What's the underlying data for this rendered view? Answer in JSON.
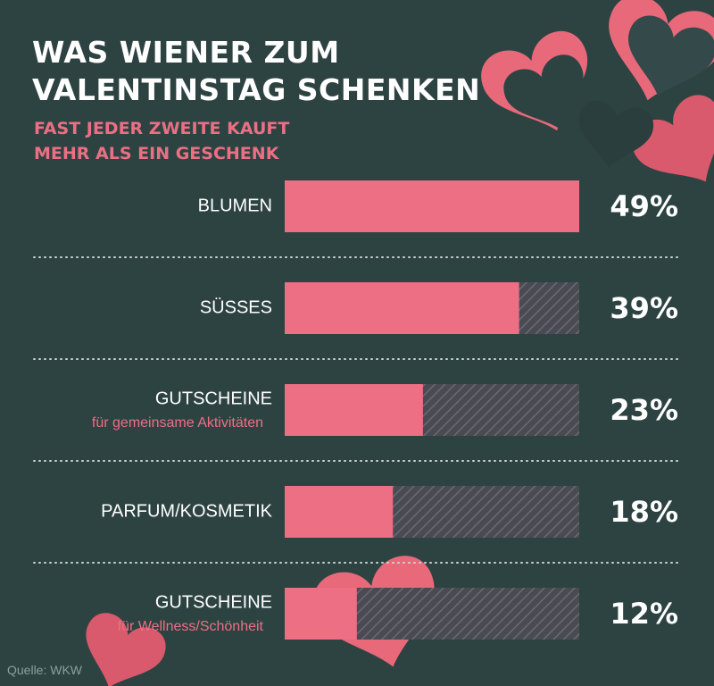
{
  "chart_data": {
    "type": "hbar",
    "title": "WAS WIENER ZUM VALENTINSTAG SCHENKEN",
    "subtitle": "FAST JEDER ZWEITE KAUFT MEHR ALS EIN GESCHENK",
    "categories": [
      "BLUMEN",
      "SÜSSES",
      "GUTSCHEINE",
      "PARFUM/KOSMETIK",
      "GUTSCHEINE"
    ],
    "category_notes": [
      null,
      null,
      "für gemeinsame Aktivitäten",
      null,
      "für Wellness/Schönheit"
    ],
    "values": [
      49,
      39,
      23,
      18,
      12
    ],
    "value_labels": [
      "49%",
      "39%",
      "23%",
      "18%",
      "12%"
    ],
    "color": "#ec6f84",
    "xlim": [
      0,
      49
    ],
    "source": "Quelle: WKW"
  }
}
